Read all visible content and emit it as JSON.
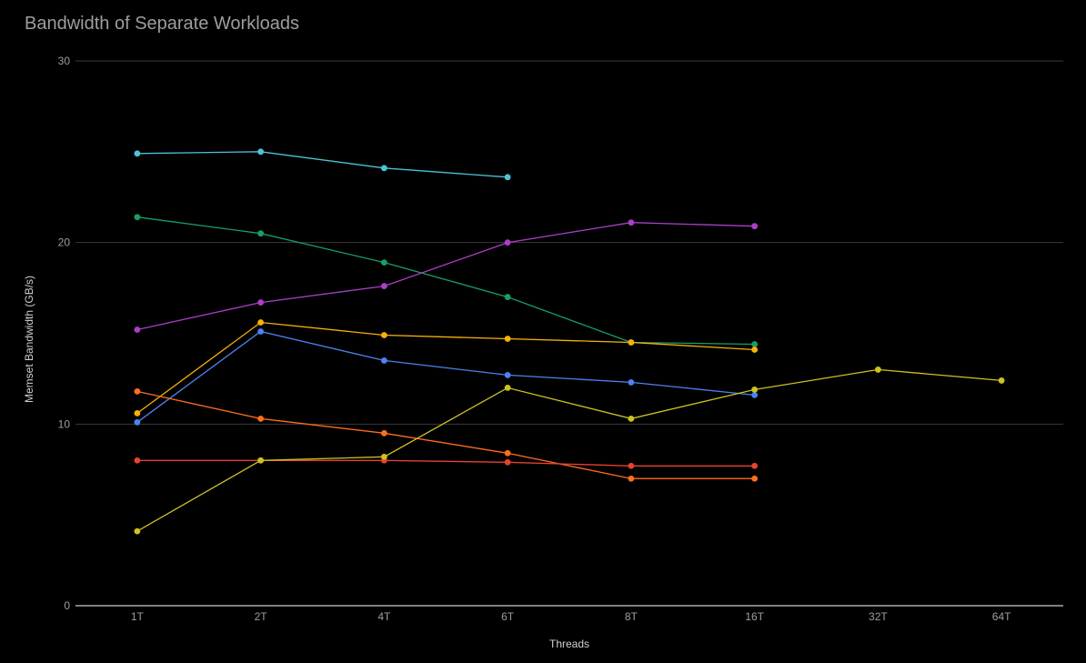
{
  "chart_data": {
    "type": "line",
    "title": "Bandwidth of Separate Workloads",
    "xlabel": "Threads",
    "ylabel": "Memset Bandwidth (GB/s)",
    "categories": [
      "1T",
      "2T",
      "4T",
      "6T",
      "8T",
      "16T",
      "32T",
      "64T"
    ],
    "ylim": [
      0,
      30
    ],
    "yticks": [
      0,
      10,
      20,
      30
    ],
    "grid": true,
    "legend": "none",
    "series": [
      {
        "color": "#4dc3d6",
        "values": [
          24.9,
          25.0,
          24.1,
          23.6,
          null,
          null,
          null,
          null
        ]
      },
      {
        "color": "#16a064",
        "values": [
          21.4,
          20.5,
          18.9,
          17.0,
          14.5,
          14.4,
          null,
          null
        ]
      },
      {
        "color": "#ab3ec8",
        "values": [
          15.2,
          16.7,
          17.6,
          20.0,
          21.1,
          20.9,
          null,
          null
        ]
      },
      {
        "color": "#f9b10a",
        "values": [
          10.6,
          15.6,
          14.9,
          14.7,
          14.5,
          14.1,
          null,
          null
        ]
      },
      {
        "color": "#4d82ef",
        "values": [
          10.1,
          15.1,
          13.5,
          12.7,
          12.3,
          11.6,
          null,
          null
        ]
      },
      {
        "color": "#ff6d1f",
        "values": [
          11.8,
          10.3,
          9.5,
          8.4,
          7.0,
          7.0,
          null,
          null
        ]
      },
      {
        "color": "#e8412f",
        "values": [
          8.0,
          8.0,
          8.0,
          7.9,
          7.7,
          7.7,
          null,
          null
        ]
      },
      {
        "color": "#cdc124",
        "values": [
          4.1,
          8.0,
          8.2,
          12.0,
          10.3,
          11.9,
          13.0,
          12.4
        ]
      }
    ]
  }
}
